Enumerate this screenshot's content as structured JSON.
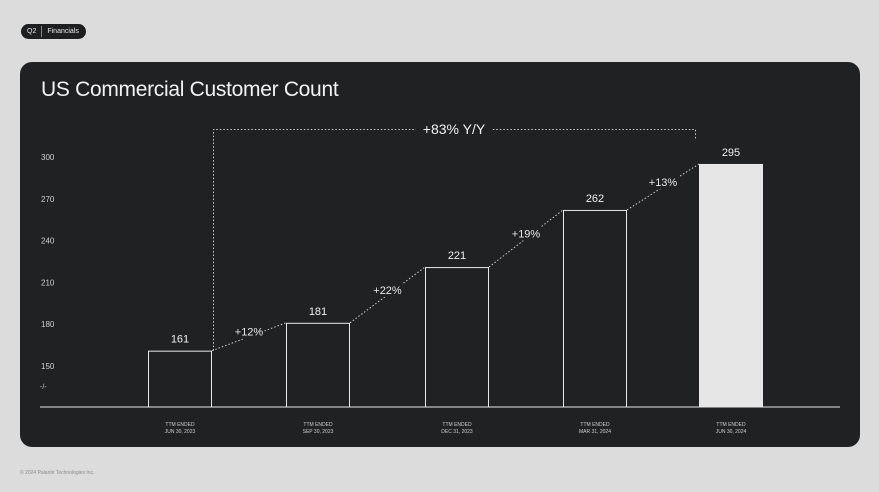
{
  "header": {
    "quarter": "Q2",
    "section": "Financials"
  },
  "footer": {
    "copyright": "© 2024 Palantir Technologies Inc."
  },
  "colors": {
    "background": "#dcdcdc",
    "card": "#1f2123",
    "bar_outline": "#e8e8e8",
    "last_bar_fill": "#e6e6e6"
  },
  "chart_data": {
    "type": "bar",
    "title": "US Commercial Customer Count",
    "categories": [
      [
        "TTM ENDED",
        "JUN 30, 2023"
      ],
      [
        "TTM ENDED",
        "SEP 30, 2023"
      ],
      [
        "TTM ENDED",
        "DEC 31, 2023"
      ],
      [
        "TTM ENDED",
        "MAR 31, 2024"
      ],
      [
        "TTM ENDED",
        "JUN 30, 2024"
      ]
    ],
    "values": [
      161,
      181,
      221,
      262,
      295
    ],
    "data_labels": [
      "161",
      "181",
      "221",
      "262",
      "295"
    ],
    "growth_labels": [
      "+12%",
      "+22%",
      "+19%",
      "+13%"
    ],
    "yoy_label": "+83% Y/Y",
    "y_ticks": [
      150,
      180,
      210,
      240,
      270,
      300
    ],
    "axis_break_label": "-/-",
    "ylim": [
      120,
      300
    ],
    "grid": false,
    "highlight_last": true
  }
}
